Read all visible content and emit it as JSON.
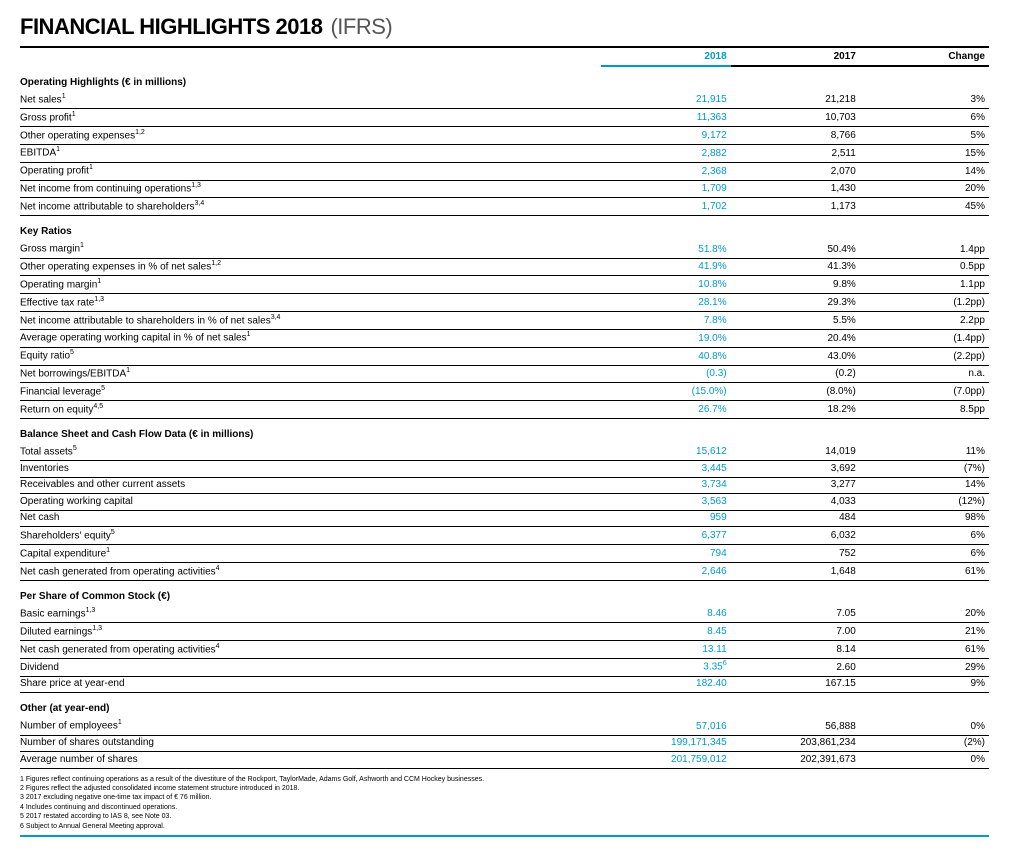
{
  "title": {
    "main": "FINANCIAL HIGHLIGHTS 2018",
    "sub": "(IFRS)"
  },
  "columns": {
    "y2018": "2018",
    "y2017": "2017",
    "change": "Change"
  },
  "colors": {
    "accent": "#0099cc",
    "text": "#000000",
    "subtitle": "#555555",
    "background": "#ffffff"
  },
  "sections": [
    {
      "title": "Operating Highlights (€ in millions)",
      "rows": [
        {
          "label": "Net sales<sup>1</sup>",
          "y2018": "21,915",
          "y2017": "21,218",
          "change": "3%"
        },
        {
          "label": "Gross profit<sup>1</sup>",
          "y2018": "11,363",
          "y2017": "10,703",
          "change": "6%"
        },
        {
          "label": "Other operating expenses<sup>1,2</sup>",
          "y2018": "9,172",
          "y2017": "8,766",
          "change": "5%"
        },
        {
          "label": "EBITDA<sup>1</sup>",
          "y2018": "2,882",
          "y2017": "2,511",
          "change": "15%"
        },
        {
          "label": "Operating profit<sup>1</sup>",
          "y2018": "2,368",
          "y2017": "2,070",
          "change": "14%"
        },
        {
          "label": "Net income from continuing operations<sup>1,3</sup>",
          "y2018": "1,709",
          "y2017": "1,430",
          "change": "20%"
        },
        {
          "label": "Net income attributable to shareholders<sup>3,4</sup>",
          "y2018": "1,702",
          "y2017": "1,173",
          "change": "45%"
        }
      ]
    },
    {
      "title": "Key Ratios",
      "rows": [
        {
          "label": "Gross margin<sup>1</sup>",
          "y2018": "51.8%",
          "y2017": "50.4%",
          "change": "1.4pp"
        },
        {
          "label": "Other operating expenses in % of net sales<sup>1,2</sup>",
          "y2018": "41.9%",
          "y2017": "41.3%",
          "change": "0.5pp"
        },
        {
          "label": "Operating margin<sup>1</sup>",
          "y2018": "10.8%",
          "y2017": "9.8%",
          "change": "1.1pp"
        },
        {
          "label": "Effective tax rate<sup>1,3</sup>",
          "y2018": "28.1%",
          "y2017": "29.3%",
          "change": "(1.2pp)"
        },
        {
          "label": "Net income attributable to shareholders in % of net sales<sup>3,4</sup>",
          "y2018": "7.8%",
          "y2017": "5.5%",
          "change": "2.2pp"
        },
        {
          "label": "Average operating working capital in % of net sales<sup>1</sup>",
          "y2018": "19.0%",
          "y2017": "20.4%",
          "change": "(1.4pp)"
        },
        {
          "label": "Equity ratio<sup>5</sup>",
          "y2018": "40.8%",
          "y2017": "43.0%",
          "change": "(2.2pp)"
        },
        {
          "label": "Net borrowings/EBITDA<sup>1</sup>",
          "y2018": "(0.3)",
          "y2017": "(0.2)",
          "change": "n.a."
        },
        {
          "label": "Financial leverage<sup>5</sup>",
          "y2018": "(15.0%)",
          "y2017": "(8.0%)",
          "change": "(7.0pp)"
        },
        {
          "label": "Return on equity<sup>4,5</sup>",
          "y2018": "26.7%",
          "y2017": "18.2%",
          "change": "8.5pp"
        }
      ]
    },
    {
      "title": "Balance Sheet and Cash Flow Data (€ in millions)",
      "rows": [
        {
          "label": "Total assets<sup>5</sup>",
          "y2018": "15,612",
          "y2017": "14,019",
          "change": "11%"
        },
        {
          "label": "Inventories",
          "y2018": "3,445",
          "y2017": "3,692",
          "change": "(7%)"
        },
        {
          "label": "Receivables and other current assets",
          "y2018": "3,734",
          "y2017": "3,277",
          "change": "14%"
        },
        {
          "label": "Operating working capital",
          "y2018": "3,563",
          "y2017": "4,033",
          "change": "(12%)"
        },
        {
          "label": "Net cash",
          "y2018": "959",
          "y2017": "484",
          "change": "98%"
        },
        {
          "label": "Shareholders' equity<sup>5</sup>",
          "y2018": "6,377",
          "y2017": "6,032",
          "change": "6%"
        },
        {
          "label": "Capital expenditure<sup>1</sup>",
          "y2018": "794",
          "y2017": "752",
          "change": "6%"
        },
        {
          "label": "Net cash generated from operating activities<sup>4</sup>",
          "y2018": "2,646",
          "y2017": "1,648",
          "change": "61%"
        }
      ]
    },
    {
      "title": "Per Share of Common Stock (€)",
      "rows": [
        {
          "label": "Basic earnings<sup>1,3</sup>",
          "y2018": "8.46",
          "y2017": "7.05",
          "change": "20%"
        },
        {
          "label": "Diluted earnings<sup>1,3</sup>",
          "y2018": "8.45",
          "y2017": "7.00",
          "change": "21%"
        },
        {
          "label": "Net cash generated from operating activities<sup>4</sup>",
          "y2018": "13.11",
          "y2017": "8.14",
          "change": "61%"
        },
        {
          "label": "Dividend",
          "y2018": "3.35<sup>6</sup>",
          "y2017": "2.60",
          "change": "29%"
        },
        {
          "label": "Share price at year-end",
          "y2018": "182.40",
          "y2017": "167.15",
          "change": "9%"
        }
      ]
    },
    {
      "title": "Other (at year-end)",
      "rows": [
        {
          "label": "Number of employees<sup>1</sup>",
          "y2018": "57,016",
          "y2017": "56,888",
          "change": "0%"
        },
        {
          "label": "Number of shares outstanding",
          "y2018": "199,171,345",
          "y2017": "203,861,234",
          "change": "(2%)"
        },
        {
          "label": "Average number of shares",
          "y2018": "201,759,012",
          "y2017": "202,391,673",
          "change": "0%"
        }
      ]
    }
  ],
  "footnotes": [
    "1 Figures reflect continuing operations as a result of the divestiture of the Rockport, TaylorMade, Adams Golf, Ashworth and CCM Hockey businesses.",
    "2 Figures reflect the adjusted consolidated income statement structure introduced in 2018.",
    "3 2017 excluding negative one-time tax impact of € 76 million.",
    "4 Includes continuing and discontinued operations.",
    "5 2017 restated according to IAS 8, see Note 03.",
    "6 Subject to Annual General Meeting approval."
  ]
}
